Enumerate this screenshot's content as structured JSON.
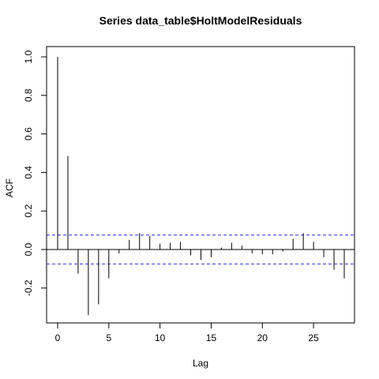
{
  "chart_data": {
    "type": "bar",
    "title": "Series  data_table$HoltModelResiduals",
    "xlabel": "Lag",
    "ylabel": "ACF",
    "xlim": [
      0,
      28
    ],
    "ylim": [
      -0.38,
      1.0
    ],
    "x_ticks": [
      0,
      5,
      10,
      15,
      20,
      25
    ],
    "x_tick_labels": [
      "0",
      "5",
      "10",
      "15",
      "20",
      "25"
    ],
    "y_ticks": [
      -0.2,
      0.0,
      0.2,
      0.4,
      0.6,
      0.8,
      1.0
    ],
    "y_tick_labels": [
      "-0.2",
      "0.0",
      "0.2",
      "0.4",
      "0.6",
      "0.8",
      "1.0"
    ],
    "confidence_bound": 0.075,
    "bound_color": "#4444dd",
    "spike_color": "#000000",
    "lags": [
      0,
      1,
      2,
      3,
      4,
      5,
      6,
      7,
      8,
      9,
      10,
      11,
      12,
      13,
      14,
      15,
      16,
      17,
      18,
      19,
      20,
      21,
      22,
      23,
      24,
      25,
      26,
      27,
      28
    ],
    "acf": [
      1.0,
      0.485,
      -0.125,
      -0.34,
      -0.285,
      -0.15,
      -0.02,
      0.05,
      0.085,
      0.07,
      0.03,
      0.035,
      0.04,
      -0.03,
      -0.055,
      -0.04,
      0.01,
      0.035,
      0.02,
      -0.02,
      -0.025,
      -0.025,
      -0.01,
      0.055,
      0.085,
      0.04,
      -0.04,
      -0.105,
      -0.15
    ],
    "grid": false
  }
}
